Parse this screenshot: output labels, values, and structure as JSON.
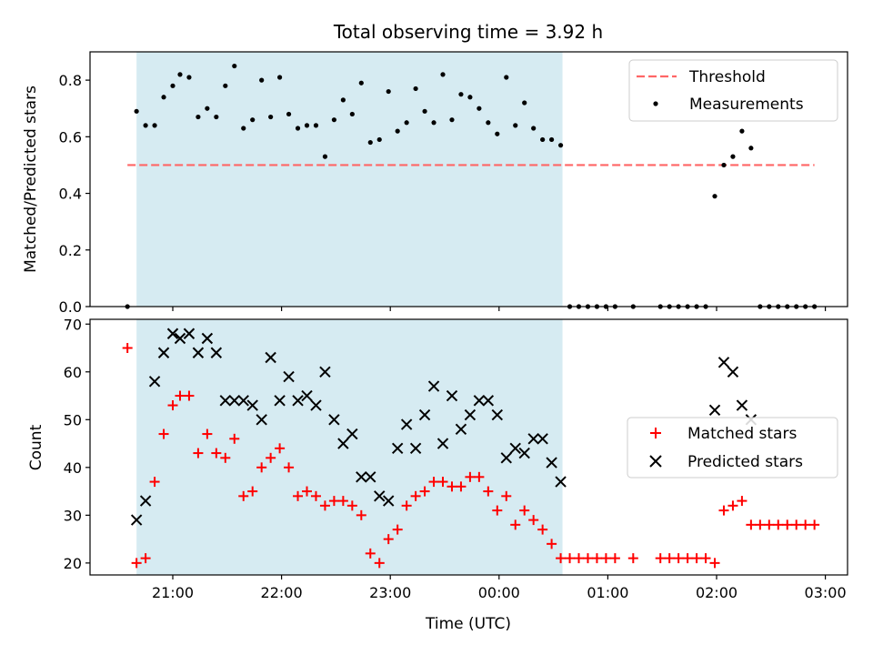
{
  "chart_data": [
    {
      "type": "scatter",
      "title": "Total observing time = 3.92 h",
      "xlabel": "",
      "ylabel": "Matched/Predicted stars",
      "ylim": [
        0,
        0.9
      ],
      "yticks": [
        "0.0",
        "0.2",
        "0.4",
        "0.6",
        "0.8"
      ],
      "shaded_span": [
        "20:40",
        "00:35"
      ],
      "shade_color": "#add8e6",
      "legend_position": "upper right",
      "threshold": {
        "name": "Threshold",
        "value": 0.5,
        "color": "#ff6666"
      },
      "series": [
        {
          "name": "Measurements",
          "color": "#000000",
          "points": [
            [
              "20:35",
              0.0
            ],
            [
              "20:40",
              0.69
            ],
            [
              "20:45",
              0.64
            ],
            [
              "20:50",
              0.64
            ],
            [
              "20:55",
              0.74
            ],
            [
              "21:00",
              0.78
            ],
            [
              "21:04",
              0.82
            ],
            [
              "21:09",
              0.81
            ],
            [
              "21:14",
              0.67
            ],
            [
              "21:19",
              0.7
            ],
            [
              "21:24",
              0.67
            ],
            [
              "21:29",
              0.78
            ],
            [
              "21:34",
              0.85
            ],
            [
              "21:39",
              0.63
            ],
            [
              "21:44",
              0.66
            ],
            [
              "21:49",
              0.8
            ],
            [
              "21:54",
              0.67
            ],
            [
              "21:59",
              0.81
            ],
            [
              "22:04",
              0.68
            ],
            [
              "22:09",
              0.63
            ],
            [
              "22:14",
              0.64
            ],
            [
              "22:19",
              0.64
            ],
            [
              "22:24",
              0.53
            ],
            [
              "22:29",
              0.66
            ],
            [
              "22:34",
              0.73
            ],
            [
              "22:39",
              0.68
            ],
            [
              "22:44",
              0.79
            ],
            [
              "22:49",
              0.58
            ],
            [
              "22:54",
              0.59
            ],
            [
              "22:59",
              0.76
            ],
            [
              "23:04",
              0.62
            ],
            [
              "23:09",
              0.65
            ],
            [
              "23:14",
              0.77
            ],
            [
              "23:19",
              0.69
            ],
            [
              "23:24",
              0.65
            ],
            [
              "23:29",
              0.82
            ],
            [
              "23:34",
              0.66
            ],
            [
              "23:39",
              0.75
            ],
            [
              "23:44",
              0.74
            ],
            [
              "23:49",
              0.7
            ],
            [
              "23:54",
              0.65
            ],
            [
              "23:59",
              0.61
            ],
            [
              "00:04",
              0.81
            ],
            [
              "00:09",
              0.64
            ],
            [
              "00:14",
              0.72
            ],
            [
              "00:19",
              0.63
            ],
            [
              "00:24",
              0.59
            ],
            [
              "00:29",
              0.59
            ],
            [
              "00:34",
              0.57
            ],
            [
              "00:39",
              0.0
            ],
            [
              "00:44",
              0.0
            ],
            [
              "00:49",
              0.0
            ],
            [
              "00:54",
              0.0
            ],
            [
              "00:59",
              0.0
            ],
            [
              "01:04",
              0.0
            ],
            [
              "01:14",
              0.0
            ],
            [
              "01:29",
              0.0
            ],
            [
              "01:34",
              0.0
            ],
            [
              "01:39",
              0.0
            ],
            [
              "01:44",
              0.0
            ],
            [
              "01:49",
              0.0
            ],
            [
              "01:54",
              0.0
            ],
            [
              "01:59",
              0.39
            ],
            [
              "02:04",
              0.5
            ],
            [
              "02:09",
              0.53
            ],
            [
              "02:14",
              0.62
            ],
            [
              "02:19",
              0.56
            ],
            [
              "02:24",
              0.0
            ],
            [
              "02:29",
              0.0
            ],
            [
              "02:34",
              0.0
            ],
            [
              "02:39",
              0.0
            ],
            [
              "02:44",
              0.0
            ],
            [
              "02:49",
              0.0
            ],
            [
              "02:54",
              0.0
            ]
          ]
        }
      ]
    },
    {
      "type": "scatter",
      "xlabel": "Time (UTC)",
      "ylabel": "Count",
      "ylim": [
        17.5,
        71
      ],
      "yticks": [
        "20",
        "30",
        "40",
        "50",
        "60",
        "70"
      ],
      "xticks": [
        "21:00",
        "22:00",
        "23:00",
        "00:00",
        "01:00",
        "02:00",
        "03:00"
      ],
      "legend_position": "center right",
      "series": [
        {
          "name": "Matched stars",
          "marker": "plus",
          "color": "#ff0000",
          "points": [
            [
              "20:35",
              65
            ],
            [
              "20:40",
              20
            ],
            [
              "20:45",
              21
            ],
            [
              "20:50",
              37
            ],
            [
              "20:55",
              47
            ],
            [
              "21:00",
              53
            ],
            [
              "21:04",
              55
            ],
            [
              "21:09",
              55
            ],
            [
              "21:14",
              43
            ],
            [
              "21:19",
              47
            ],
            [
              "21:24",
              43
            ],
            [
              "21:29",
              42
            ],
            [
              "21:34",
              46
            ],
            [
              "21:39",
              34
            ],
            [
              "21:44",
              35
            ],
            [
              "21:49",
              40
            ],
            [
              "21:54",
              42
            ],
            [
              "21:59",
              44
            ],
            [
              "22:04",
              40
            ],
            [
              "22:09",
              34
            ],
            [
              "22:14",
              35
            ],
            [
              "22:19",
              34
            ],
            [
              "22:24",
              32
            ],
            [
              "22:29",
              33
            ],
            [
              "22:34",
              33
            ],
            [
              "22:39",
              32
            ],
            [
              "22:44",
              30
            ],
            [
              "22:49",
              22
            ],
            [
              "22:54",
              20
            ],
            [
              "22:59",
              25
            ],
            [
              "23:04",
              27
            ],
            [
              "23:09",
              32
            ],
            [
              "23:14",
              34
            ],
            [
              "23:19",
              35
            ],
            [
              "23:24",
              37
            ],
            [
              "23:29",
              37
            ],
            [
              "23:34",
              36
            ],
            [
              "23:39",
              36
            ],
            [
              "23:44",
              38
            ],
            [
              "23:49",
              38
            ],
            [
              "23:54",
              35
            ],
            [
              "23:59",
              31
            ],
            [
              "00:04",
              34
            ],
            [
              "00:09",
              28
            ],
            [
              "00:14",
              31
            ],
            [
              "00:19",
              29
            ],
            [
              "00:24",
              27
            ],
            [
              "00:29",
              24
            ],
            [
              "00:34",
              21
            ],
            [
              "00:39",
              21
            ],
            [
              "00:44",
              21
            ],
            [
              "00:49",
              21
            ],
            [
              "00:54",
              21
            ],
            [
              "00:59",
              21
            ],
            [
              "01:04",
              21
            ],
            [
              "01:14",
              21
            ],
            [
              "01:29",
              21
            ],
            [
              "01:34",
              21
            ],
            [
              "01:39",
              21
            ],
            [
              "01:44",
              21
            ],
            [
              "01:49",
              21
            ],
            [
              "01:54",
              21
            ],
            [
              "01:59",
              20
            ],
            [
              "02:04",
              31
            ],
            [
              "02:09",
              32
            ],
            [
              "02:14",
              33
            ],
            [
              "02:19",
              28
            ],
            [
              "02:24",
              28
            ],
            [
              "02:29",
              28
            ],
            [
              "02:34",
              28
            ],
            [
              "02:39",
              28
            ],
            [
              "02:44",
              28
            ],
            [
              "02:49",
              28
            ],
            [
              "02:54",
              28
            ]
          ]
        },
        {
          "name": "Predicted stars",
          "marker": "x",
          "color": "#000000",
          "points": [
            [
              "20:40",
              29
            ],
            [
              "20:45",
              33
            ],
            [
              "20:50",
              58
            ],
            [
              "20:55",
              64
            ],
            [
              "21:00",
              68
            ],
            [
              "21:04",
              67
            ],
            [
              "21:09",
              68
            ],
            [
              "21:14",
              64
            ],
            [
              "21:19",
              67
            ],
            [
              "21:24",
              64
            ],
            [
              "21:29",
              54
            ],
            [
              "21:34",
              54
            ],
            [
              "21:39",
              54
            ],
            [
              "21:44",
              53
            ],
            [
              "21:49",
              50
            ],
            [
              "21:54",
              63
            ],
            [
              "21:59",
              54
            ],
            [
              "22:04",
              59
            ],
            [
              "22:09",
              54
            ],
            [
              "22:14",
              55
            ],
            [
              "22:19",
              53
            ],
            [
              "22:24",
              60
            ],
            [
              "22:29",
              50
            ],
            [
              "22:34",
              45
            ],
            [
              "22:39",
              47
            ],
            [
              "22:44",
              38
            ],
            [
              "22:49",
              38
            ],
            [
              "22:54",
              34
            ],
            [
              "22:59",
              33
            ],
            [
              "23:04",
              44
            ],
            [
              "23:09",
              49
            ],
            [
              "23:14",
              44
            ],
            [
              "23:19",
              51
            ],
            [
              "23:24",
              57
            ],
            [
              "23:29",
              45
            ],
            [
              "23:34",
              55
            ],
            [
              "23:39",
              48
            ],
            [
              "23:44",
              51
            ],
            [
              "23:49",
              54
            ],
            [
              "23:54",
              54
            ],
            [
              "23:59",
              51
            ],
            [
              "00:04",
              42
            ],
            [
              "00:09",
              44
            ],
            [
              "00:14",
              43
            ],
            [
              "00:19",
              46
            ],
            [
              "00:24",
              46
            ],
            [
              "00:29",
              41
            ],
            [
              "00:34",
              37
            ],
            [
              "01:59",
              52
            ],
            [
              "02:04",
              62
            ],
            [
              "02:09",
              60
            ],
            [
              "02:14",
              53
            ],
            [
              "02:19",
              50
            ]
          ]
        }
      ]
    }
  ]
}
